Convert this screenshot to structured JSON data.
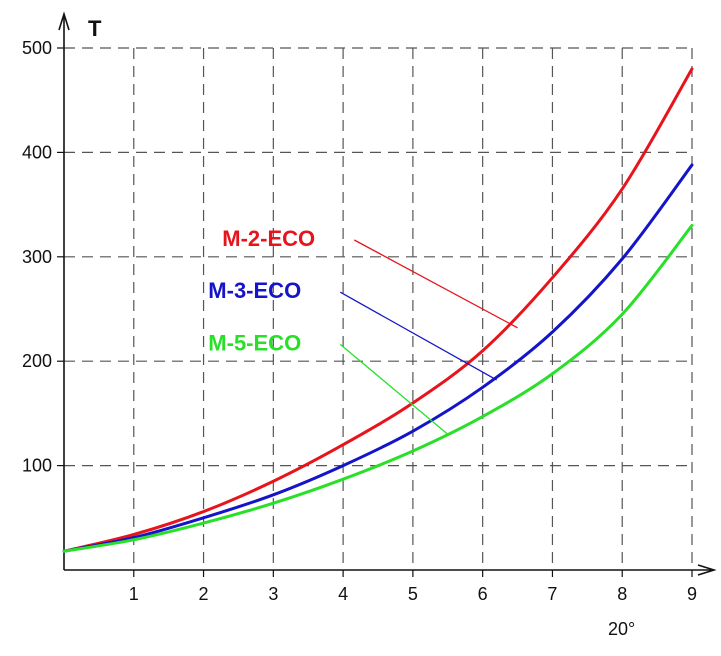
{
  "chart_data": {
    "type": "line",
    "title": "",
    "xlabel": "",
    "ylabel": "T",
    "xlim": [
      0,
      9
    ],
    "ylim": [
      0,
      500
    ],
    "x_ticks": [
      1,
      2,
      3,
      4,
      5,
      6,
      7,
      8,
      9
    ],
    "x_tick_labels": [
      "1",
      "2",
      "3",
      "4",
      "5",
      "6",
      "7",
      "8",
      "9"
    ],
    "y_ticks": [
      100,
      200,
      300,
      400,
      500
    ],
    "y_tick_labels": [
      "100",
      "200",
      "300",
      "400",
      "500"
    ],
    "grid": true,
    "annotation": "20°",
    "x": [
      0,
      1,
      2,
      3,
      4,
      5,
      6,
      7,
      8,
      9
    ],
    "series": [
      {
        "name": "M-2-ECO",
        "color": "#e8141c",
        "values": [
          18,
          34,
          56,
          85,
          120,
          160,
          210,
          280,
          365,
          480
        ],
        "label_anchor": [
          3.3,
          15
        ],
        "leader_target": [
          6.5,
          232
        ]
      },
      {
        "name": "M-3-ECO",
        "color": "#1414c8",
        "values": [
          18,
          31,
          50,
          72,
          100,
          133,
          175,
          228,
          298,
          388
        ],
        "label_anchor": [
          3.1,
          70
        ],
        "leader_target": [
          6.2,
          182
        ]
      },
      {
        "name": "M-5-ECO",
        "color": "#28e028",
        "values": [
          18,
          29,
          45,
          64,
          87,
          114,
          147,
          188,
          245,
          330
        ],
        "label_anchor": [
          3.1,
          125
        ],
        "leader_target": [
          5.5,
          130
        ]
      }
    ]
  }
}
